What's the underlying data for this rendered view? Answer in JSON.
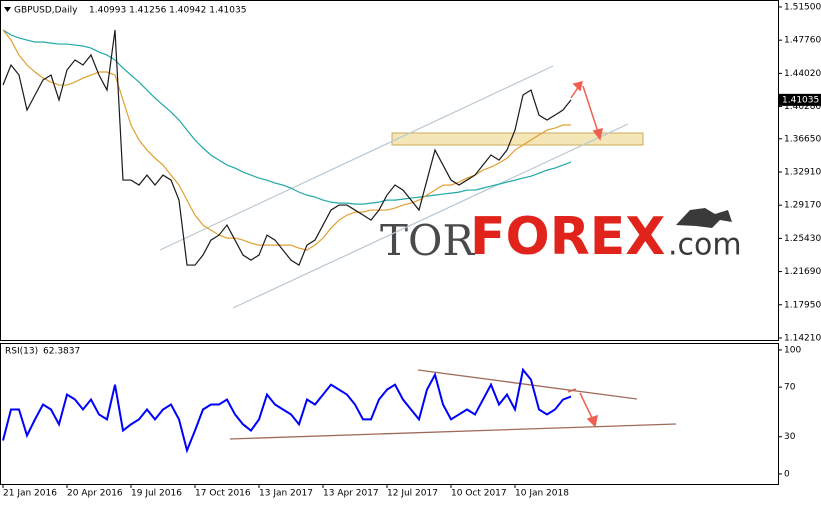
{
  "chart_data": [
    {
      "type": "line",
      "title": "GBPUSD,Daily",
      "ohlc": "1.40993 1.41256 1.40942 1.41035",
      "last_price_label": "1.41035",
      "ylim": [
        1.1398,
        1.5206
      ],
      "yticks": [
        {
          "value": 1.515,
          "label": "1.51500"
        },
        {
          "value": 1.4776,
          "label": "1.47760"
        },
        {
          "value": 1.4402,
          "label": "1.44020"
        },
        {
          "value": 1.4028,
          "label": "1.40280"
        },
        {
          "value": 1.3665,
          "label": "1.36650"
        },
        {
          "value": 1.3291,
          "label": "1.32910"
        },
        {
          "value": 1.2917,
          "label": "1.29170"
        },
        {
          "value": 1.2543,
          "label": "1.25430"
        },
        {
          "value": 1.2169,
          "label": "1.21690"
        },
        {
          "value": 1.1795,
          "label": "1.17950"
        },
        {
          "value": 1.1421,
          "label": "1.14210"
        }
      ],
      "series": [
        {
          "color": "#1a1a1a",
          "values": [
            1.4271,
            1.4496,
            1.4383,
            1.3989,
            1.4158,
            1.4327,
            1.4383,
            1.4102,
            1.444,
            1.4552,
            1.4496,
            1.4609,
            1.4383,
            1.4214,
            1.489,
            1.32,
            1.32,
            1.3144,
            1.3256,
            1.3144,
            1.3256,
            1.32,
            1.2975,
            1.2242,
            1.2242,
            1.2355,
            1.2524,
            1.258,
            1.2693,
            1.2524,
            1.2355,
            1.2298,
            1.2355,
            1.258,
            1.2524,
            1.2411,
            1.2298,
            1.2242,
            1.2467,
            1.2524,
            1.2693,
            1.2862,
            1.2918,
            1.2918,
            1.2862,
            1.2806,
            1.2749,
            1.2862,
            1.3031,
            1.3144,
            1.3087,
            1.2975,
            1.2862,
            1.32,
            1.3538,
            1.3369,
            1.32,
            1.3144,
            1.32,
            1.3256,
            1.3369,
            1.3482,
            1.3425,
            1.3538,
            1.3763,
            1.4158,
            1.4214,
            1.3932,
            1.3876,
            1.3932,
            1.3989,
            1.41035
          ]
        },
        {
          "color": "#e0a030",
          "values": [
            1.489,
            1.4777,
            1.4608,
            1.4496,
            1.4417,
            1.4349,
            1.4304,
            1.427,
            1.427,
            1.4304,
            1.4349,
            1.4383,
            1.4417,
            1.4417,
            1.4383,
            1.4101,
            1.382,
            1.3651,
            1.3538,
            1.3447,
            1.3369,
            1.3256,
            1.3143,
            1.2974,
            1.2805,
            1.2692,
            1.2636,
            1.258,
            1.2546,
            1.2546,
            1.2524,
            1.249,
            1.2467,
            1.2467,
            1.2467,
            1.2467,
            1.2467,
            1.2433,
            1.2411,
            1.2467,
            1.2546,
            1.2659,
            1.2749,
            1.2805,
            1.2839,
            1.2839,
            1.2862,
            1.2862,
            1.2862,
            1.2884,
            1.2918,
            1.2941,
            1.2974,
            1.3031,
            1.3087,
            1.3143,
            1.3143,
            1.3177,
            1.3222,
            1.3256,
            1.3313,
            1.3346,
            1.3391,
            1.3447,
            1.3538,
            1.3594,
            1.3651,
            1.3707,
            1.3763,
            1.3786,
            1.382,
            1.382
          ]
        },
        {
          "color": "#20a8a8",
          "values": [
            1.489,
            1.4834,
            1.4801,
            1.4777,
            1.4755,
            1.4755,
            1.4743,
            1.4732,
            1.4732,
            1.4721,
            1.471,
            1.4687,
            1.4642,
            1.4608,
            1.4552,
            1.4462,
            1.4383,
            1.4304,
            1.4214,
            1.4124,
            1.4045,
            1.3966,
            1.3876,
            1.3763,
            1.3651,
            1.3561,
            1.3481,
            1.3425,
            1.3369,
            1.3335,
            1.329,
            1.3256,
            1.3222,
            1.3199,
            1.3166,
            1.3143,
            1.3109,
            1.3064,
            1.303,
            1.3008,
            1.2974,
            1.2951,
            1.294,
            1.294,
            1.2929,
            1.2929,
            1.294,
            1.2951,
            1.2974,
            1.2974,
            1.2985,
            1.2997,
            1.3008,
            1.3019,
            1.303,
            1.3042,
            1.3053,
            1.3064,
            1.3087,
            1.3087,
            1.3109,
            1.3132,
            1.3154,
            1.3177,
            1.3199,
            1.3222,
            1.3244,
            1.3278,
            1.3312,
            1.3335,
            1.3369,
            1.3402
          ]
        }
      ],
      "watermark": [
        "TOR",
        "FOREX",
        ".com"
      ]
    },
    {
      "type": "line",
      "title": "RSI(13)",
      "value_label": "62.3837",
      "color": "#0000ff",
      "ylim": [
        -7.3,
        105.6
      ],
      "yticks": [
        100,
        70,
        30,
        0
      ],
      "categories": [
        "21 Jan 2016",
        null,
        null,
        null,
        null,
        null,
        null,
        null,
        "20 Apr 2016",
        null,
        null,
        null,
        null,
        null,
        null,
        null,
        "19 Jul 2016",
        null,
        null,
        null,
        null,
        null,
        null,
        null,
        "17 Oct 2016",
        null,
        null,
        null,
        null,
        null,
        null,
        null,
        "13 Jan 2017",
        null,
        null,
        null,
        null,
        null,
        null,
        null,
        "13 Apr 2017",
        null,
        null,
        null,
        null,
        null,
        null,
        null,
        "12 Jul 2017",
        null,
        null,
        null,
        null,
        null,
        null,
        null,
        "10 Oct 2017",
        null,
        null,
        null,
        null,
        null,
        null,
        null,
        "10 Jan 2018",
        null,
        null,
        null,
        null,
        null,
        null,
        null
      ],
      "values": [
        27,
        52,
        52,
        31,
        44,
        56,
        52,
        40,
        64,
        60,
        52,
        60,
        48,
        44,
        72,
        35,
        40,
        44,
        52,
        44,
        52,
        56,
        44,
        19,
        35,
        52,
        56,
        56,
        60,
        48,
        40,
        35,
        44,
        64,
        56,
        52,
        48,
        40,
        60,
        56,
        64,
        72,
        68,
        64,
        56,
        44,
        44,
        60,
        68,
        72,
        60,
        52,
        44,
        68,
        80,
        56,
        44,
        48,
        52,
        48,
        60,
        72,
        56,
        64,
        52,
        84,
        76,
        52,
        48,
        52,
        60,
        62.38
      ]
    }
  ]
}
